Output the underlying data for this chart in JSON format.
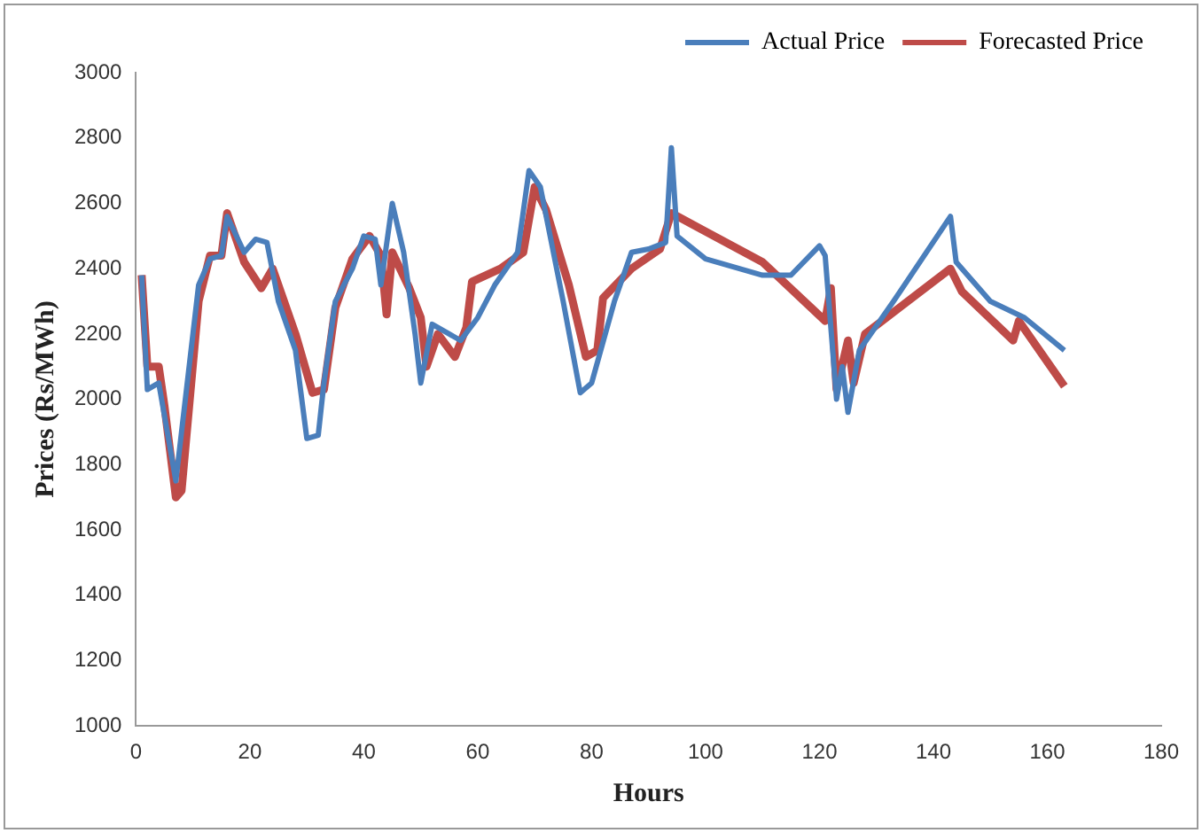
{
  "chart_data": {
    "type": "line",
    "xlabel": "Hours",
    "ylabel": "Prices (Rs/MWh)",
    "xlim": [
      0,
      180
    ],
    "xticks": [
      0,
      20,
      40,
      60,
      80,
      100,
      120,
      140,
      160,
      180
    ],
    "ylim": [
      1000,
      3000
    ],
    "yticks": [
      1000,
      1200,
      1400,
      1600,
      1800,
      2000,
      2200,
      2400,
      2600,
      2800,
      3000
    ],
    "grid": false,
    "legend": "top right",
    "marker": "none",
    "line_style": "solid",
    "series": [
      {
        "name": "Actual Price",
        "color": "#4a7ebb",
        "x": [
          1,
          2,
          4,
          7,
          11,
          13,
          15,
          16,
          19,
          21,
          23,
          25,
          28,
          30,
          32,
          33,
          35,
          38,
          40,
          42,
          43,
          45,
          47,
          49,
          50,
          52,
          55,
          57,
          60,
          63,
          67,
          69,
          71,
          75,
          78,
          80,
          84,
          87,
          90,
          93,
          94,
          95,
          100,
          110,
          115,
          120,
          121,
          123,
          124,
          125,
          127,
          133,
          143,
          144,
          150,
          156,
          163
        ],
        "values": [
          2380,
          2030,
          2050,
          1750,
          2350,
          2430,
          2440,
          2560,
          2450,
          2490,
          2480,
          2300,
          2150,
          1880,
          1890,
          2050,
          2300,
          2400,
          2500,
          2490,
          2350,
          2600,
          2450,
          2200,
          2050,
          2230,
          2200,
          2180,
          2250,
          2350,
          2450,
          2700,
          2650,
          2300,
          2020,
          2050,
          2300,
          2450,
          2460,
          2480,
          2770,
          2500,
          2430,
          2380,
          2380,
          2470,
          2440,
          2000,
          2100,
          1960,
          2150,
          2300,
          2560,
          2420,
          2300,
          2250,
          2150
        ]
      },
      {
        "name": "Forecasted Price",
        "color": "#be4b48",
        "x": [
          1,
          2,
          4,
          5,
          7,
          8,
          11,
          13,
          15,
          16,
          19,
          22,
          24,
          28,
          31,
          33,
          35,
          38,
          41,
          43,
          44,
          45,
          48,
          50,
          51,
          53,
          56,
          58,
          59,
          64,
          68,
          70,
          72,
          76,
          79,
          81,
          82,
          87,
          92,
          94,
          110,
          121,
          122,
          123,
          125,
          126,
          128,
          143,
          145,
          154,
          155,
          163
        ],
        "values": [
          2380,
          2100,
          2100,
          1980,
          1700,
          1720,
          2300,
          2440,
          2440,
          2570,
          2420,
          2340,
          2400,
          2200,
          2020,
          2030,
          2280,
          2430,
          2500,
          2440,
          2260,
          2450,
          2340,
          2250,
          2100,
          2200,
          2130,
          2220,
          2360,
          2400,
          2450,
          2650,
          2580,
          2350,
          2130,
          2150,
          2310,
          2400,
          2460,
          2570,
          2420,
          2240,
          2340,
          2030,
          2180,
          2050,
          2200,
          2400,
          2330,
          2180,
          2240,
          2040
        ]
      }
    ]
  }
}
